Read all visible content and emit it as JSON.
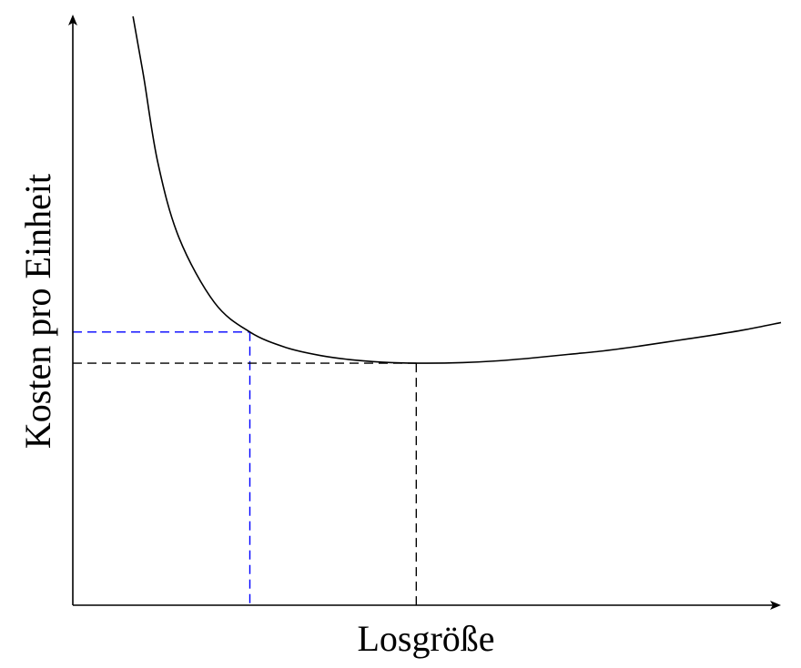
{
  "chart_data": {
    "type": "line",
    "title": "",
    "xlabel": "Losgröße",
    "ylabel": "Kosten pro Einheit",
    "xlim": [
      0,
      10
    ],
    "ylim": [
      0,
      10
    ],
    "grid": false,
    "legend": "none",
    "ticks": "none",
    "series": [
      {
        "x": [
          0.85,
          1.0,
          1.2,
          1.5,
          2.0,
          2.5,
          3.0,
          3.5,
          4.0,
          4.5,
          5.0,
          5.5,
          6.0,
          6.5,
          7.0,
          7.5,
          8.0,
          8.5,
          9.0,
          9.5,
          10.0
        ],
        "values": [
          10.0,
          8.98,
          7.52,
          6.24,
          5.14,
          4.64,
          4.38,
          4.24,
          4.16,
          4.12,
          4.11,
          4.12,
          4.15,
          4.2,
          4.26,
          4.32,
          4.4,
          4.49,
          4.58,
          4.68,
          4.8
        ]
      }
    ],
    "reference_lines": [
      {
        "x": 2.5,
        "y": 4.64,
        "color": "#0000ff"
      },
      {
        "x": 4.85,
        "y": 4.11,
        "color": "#000000"
      }
    ]
  }
}
